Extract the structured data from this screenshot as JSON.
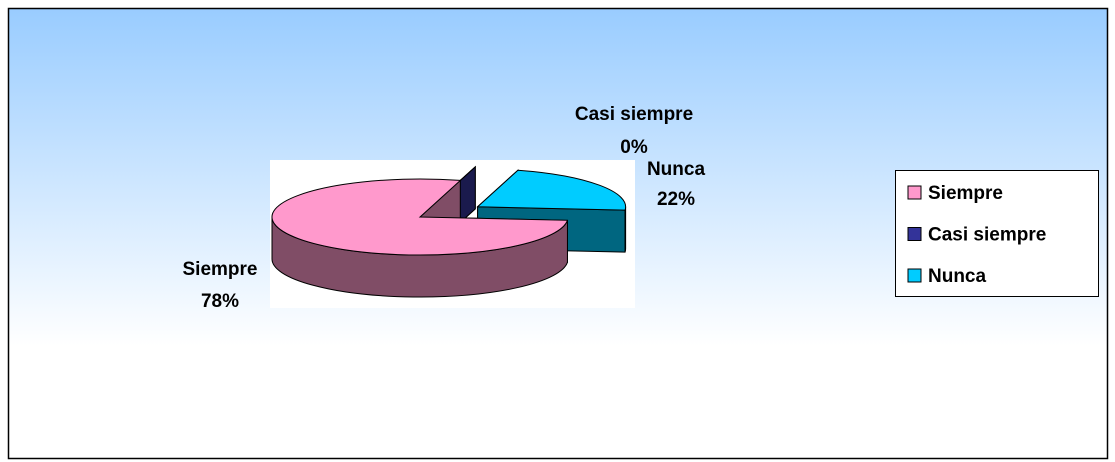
{
  "chart_data": {
    "type": "pie",
    "categories": [
      "Siempre",
      "Casi siempre",
      "Nunca"
    ],
    "values": [
      78,
      0,
      22
    ],
    "value_labels": [
      "78%",
      "0%",
      "22%"
    ],
    "colors": [
      "#ff99cc",
      "#333399",
      "#00ccff"
    ],
    "legend": "right"
  }
}
